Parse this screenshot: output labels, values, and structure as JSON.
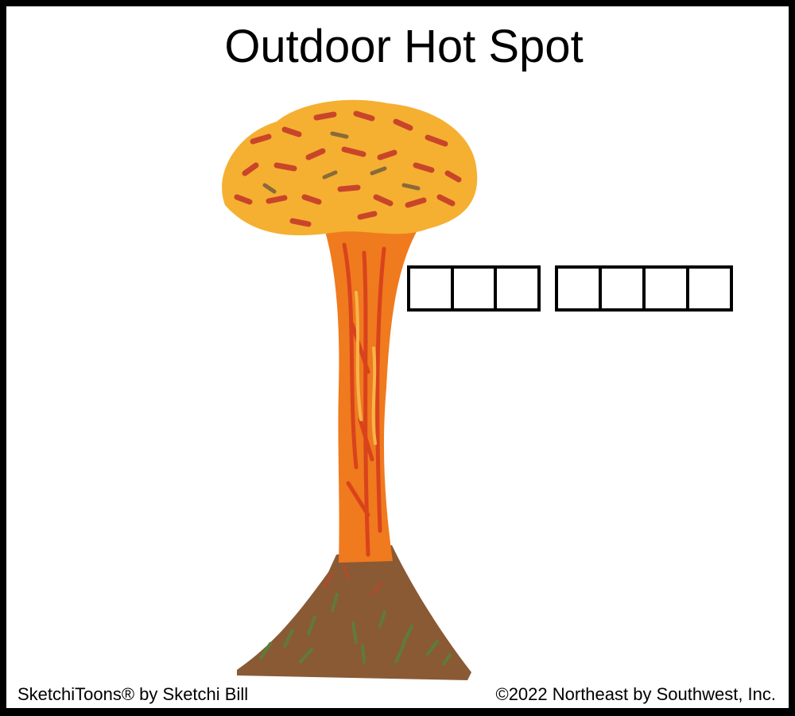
{
  "title": "Outdoor Hot Spot",
  "puzzle": {
    "words": [
      {
        "letter_count": 3
      },
      {
        "letter_count": 4
      }
    ]
  },
  "footer": {
    "credit": "SketchiToons® by Sketchi Bill",
    "copyright": "©2022 Northeast by Southwest, Inc."
  },
  "illustration": {
    "subject": "volcano-eruption",
    "colors": {
      "lava": "#f07a1e",
      "lava_dark": "#d9431c",
      "cloud": "#f5b031",
      "cloud_spots": "#c9452a",
      "rock": "#8a5a35",
      "rock_green": "#5f7b3a"
    }
  }
}
